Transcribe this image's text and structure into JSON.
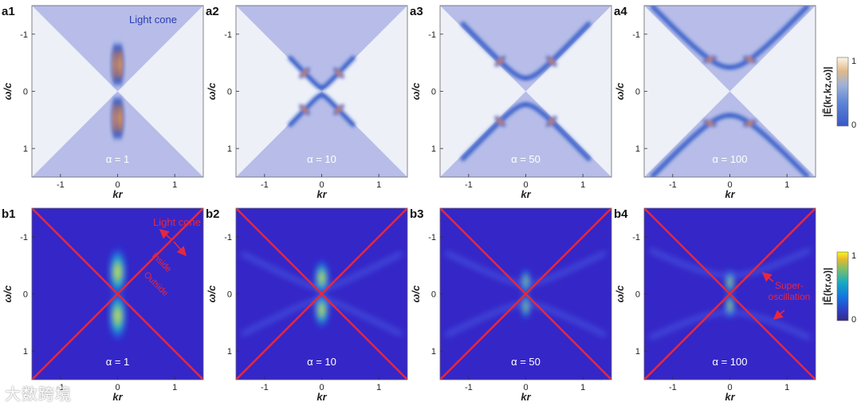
{
  "chart_data": [
    {
      "id": "a1",
      "type": "heatmap",
      "panel_label": "a1",
      "alpha_label": "α = 1",
      "xlabel": "kr",
      "ylabel": "ω/c",
      "x_ticks": [
        "-1",
        "0",
        "1"
      ],
      "y_ticks": [
        "-1",
        "0",
        "1"
      ],
      "xlim": [
        -1.5,
        1.5
      ],
      "ylim": [
        -1.5,
        1.5
      ],
      "annotation": "Light cone",
      "alpha": 1,
      "colormap": "parula-light"
    },
    {
      "id": "a2",
      "type": "heatmap",
      "panel_label": "a2",
      "alpha_label": "α = 10",
      "xlabel": "kr",
      "ylabel": "ω/c",
      "x_ticks": [
        "-1",
        "0",
        "1"
      ],
      "y_ticks": [
        "-1",
        "0",
        "1"
      ],
      "xlim": [
        -1.5,
        1.5
      ],
      "ylim": [
        -1.5,
        1.5
      ],
      "alpha": 10,
      "colormap": "parula-light"
    },
    {
      "id": "a3",
      "type": "heatmap",
      "panel_label": "a3",
      "alpha_label": "α = 50",
      "xlabel": "kr",
      "ylabel": "ω/c",
      "x_ticks": [
        "-1",
        "0",
        "1"
      ],
      "y_ticks": [
        "-1",
        "0",
        "1"
      ],
      "xlim": [
        -1.5,
        1.5
      ],
      "ylim": [
        -1.5,
        1.5
      ],
      "alpha": 50,
      "colormap": "parula-light"
    },
    {
      "id": "a4",
      "type": "heatmap",
      "panel_label": "a4",
      "alpha_label": "α = 100",
      "xlabel": "kr",
      "ylabel": "ω/c",
      "x_ticks": [
        "-1",
        "0",
        "1"
      ],
      "y_ticks": [
        "-1",
        "0",
        "1"
      ],
      "xlim": [
        -1.5,
        1.5
      ],
      "ylim": [
        -1.5,
        1.5
      ],
      "alpha": 100,
      "colormap": "parula-light"
    },
    {
      "id": "b1",
      "type": "heatmap",
      "panel_label": "b1",
      "alpha_label": "α = 1",
      "xlabel": "kr",
      "ylabel": "ω/c",
      "x_ticks": [
        "-1",
        "0",
        "1"
      ],
      "y_ticks": [
        "-1",
        "0",
        "1"
      ],
      "xlim": [
        -1.5,
        1.5
      ],
      "ylim": [
        -1.5,
        1.5
      ],
      "annotation": "Light cone",
      "inside_label": "Inside",
      "outside_label": "Outside",
      "alpha": 1,
      "colormap": "parula",
      "light_cone_color": "#e8273c"
    },
    {
      "id": "b2",
      "type": "heatmap",
      "panel_label": "b2",
      "alpha_label": "α = 10",
      "xlabel": "kr",
      "ylabel": "ω/c",
      "x_ticks": [
        "-1",
        "0",
        "1"
      ],
      "y_ticks": [
        "-1",
        "0",
        "1"
      ],
      "xlim": [
        -1.5,
        1.5
      ],
      "ylim": [
        -1.5,
        1.5
      ],
      "alpha": 10,
      "colormap": "parula",
      "light_cone_color": "#e8273c"
    },
    {
      "id": "b3",
      "type": "heatmap",
      "panel_label": "b3",
      "alpha_label": "α = 50",
      "xlabel": "kr",
      "ylabel": "ω/c",
      "x_ticks": [
        "-1",
        "0",
        "1"
      ],
      "y_ticks": [
        "-1",
        "0",
        "1"
      ],
      "xlim": [
        -1.5,
        1.5
      ],
      "ylim": [
        -1.5,
        1.5
      ],
      "alpha": 50,
      "colormap": "parula",
      "light_cone_color": "#e8273c"
    },
    {
      "id": "b4",
      "type": "heatmap",
      "panel_label": "b4",
      "alpha_label": "α = 100",
      "xlabel": "kr",
      "ylabel": "ω/c",
      "x_ticks": [
        "-1",
        "0",
        "1"
      ],
      "y_ticks": [
        "-1",
        "0",
        "1"
      ],
      "xlim": [
        -1.5,
        1.5
      ],
      "ylim": [
        -1.5,
        1.5
      ],
      "annotation": "Super-\noscillation",
      "alpha": 100,
      "colormap": "parula",
      "light_cone_color": "#e8273c"
    }
  ],
  "colorbars": [
    {
      "label": "|Ẽ(kr,kz,ω)|",
      "min_label": "0",
      "max_label": "1",
      "colormap": "parula-light"
    },
    {
      "label": "|Ẽ(kr,ω)|",
      "min_label": "0",
      "max_label": "1",
      "colormap": "parula"
    }
  ],
  "watermark": "大数跨境"
}
